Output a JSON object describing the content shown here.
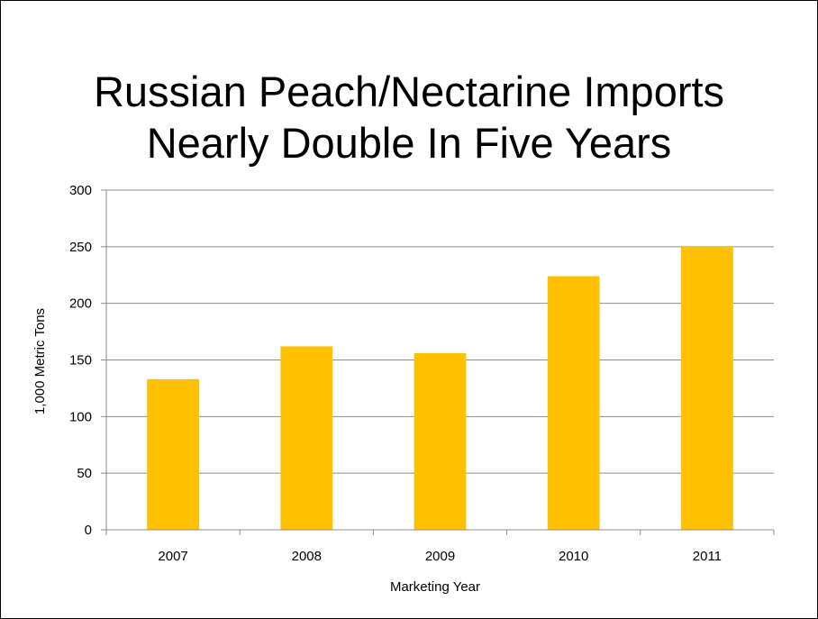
{
  "title_lines": [
    "Russian Peach/Nectarine Imports",
    "Nearly Double In Five Years"
  ],
  "colors": {
    "bar": "#FFC000",
    "grid": "#8C8C8C",
    "axis": "#8C8C8C",
    "background": "#FFFFFF"
  },
  "chart_data": {
    "type": "bar",
    "title": "Russian Peach/Nectarine Imports Nearly Double In Five Years",
    "categories": [
      "2007",
      "2008",
      "2009",
      "2010",
      "2011"
    ],
    "values": [
      133,
      162,
      156,
      224,
      250
    ],
    "xlabel": "Marketing Year",
    "ylabel": "1,000 Metric Tons",
    "ylim": [
      0,
      300
    ],
    "yticks": [
      0,
      50,
      100,
      150,
      200,
      250,
      300
    ],
    "grid": true,
    "legend": "none"
  }
}
